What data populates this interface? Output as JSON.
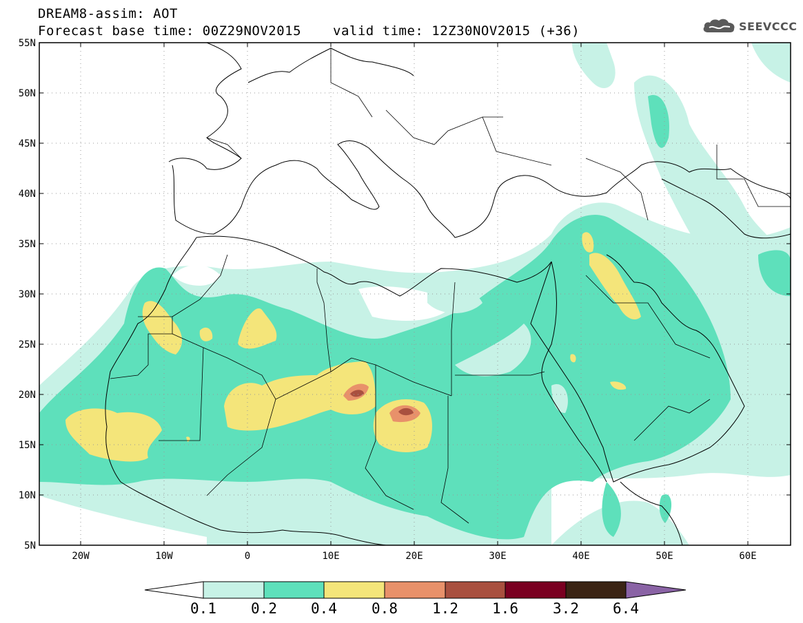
{
  "header": {
    "title_line1": "DREAM8-assim: AOT",
    "title_line2": "Forecast base time: 00Z29NOV2015",
    "valid_time": "valid time: 12Z30NOV2015 (+36)",
    "logo_text": "SEEVCCC",
    "logo_icon": "cloud-icon"
  },
  "map": {
    "lat_labels": [
      "55N",
      "50N",
      "45N",
      "40N",
      "35N",
      "30N",
      "25N",
      "20N",
      "15N",
      "10N",
      "5N"
    ],
    "lon_labels": [
      "20W",
      "10W",
      "0",
      "10E",
      "20E",
      "30E",
      "40E",
      "50E",
      "60E"
    ],
    "grid": true,
    "extent": {
      "lon": [
        -25,
        65
      ],
      "lat": [
        5,
        55
      ]
    }
  },
  "colorbar": {
    "labels": [
      "0.1",
      "0.2",
      "0.4",
      "0.8",
      "1.2",
      "1.6",
      "3.2",
      "6.4"
    ],
    "colors": [
      "#ffffff",
      "#c7f2e6",
      "#5ee0bb",
      "#f4e57a",
      "#e8916a",
      "#a9503f",
      "#7a0021",
      "#3b2414",
      "#8a63a5"
    ]
  },
  "legend_colors": {
    "c01": "#c7f2e6",
    "c02": "#5ee0bb",
    "c04": "#f4e57a",
    "c08": "#e8916a",
    "c12": "#a9503f"
  }
}
